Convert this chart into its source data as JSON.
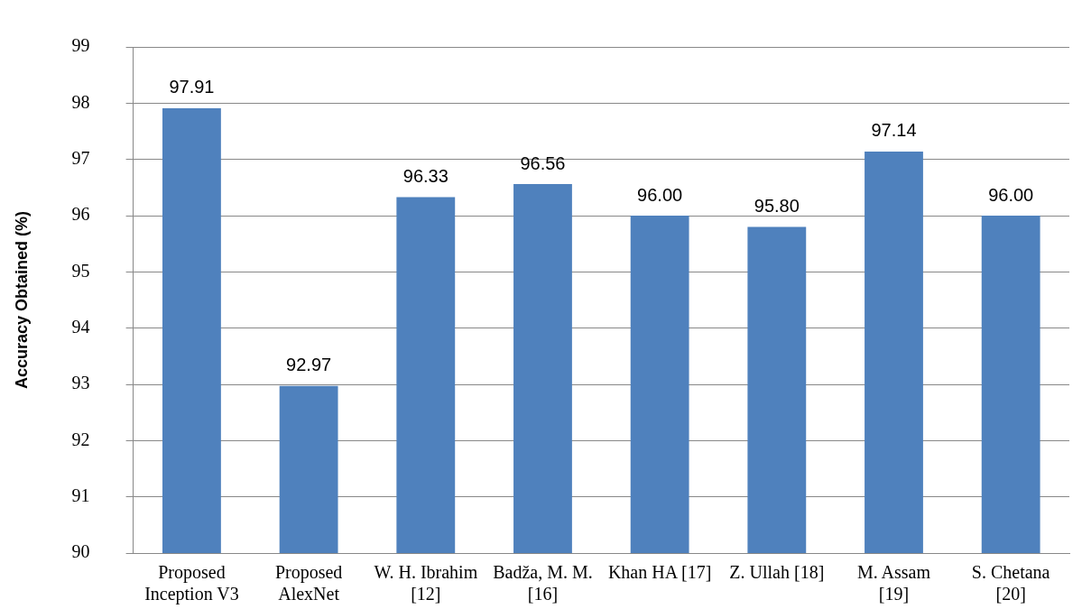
{
  "chart_data": {
    "type": "bar",
    "ylabel": "Accuracy Obtained (%)",
    "categories": [
      "Proposed Inception V3",
      "Proposed AlexNet",
      "W. H. Ibrahim [12]",
      "Badža, M. M. [16]",
      "Khan HA [17]",
      "Z. Ullah [18]",
      "M. Assam [19]",
      "S. Chetana [20]"
    ],
    "values": [
      97.91,
      92.97,
      96.33,
      96.56,
      96.0,
      95.8,
      97.14,
      96.0
    ],
    "value_labels": [
      "97.91",
      "92.97",
      "96.33",
      "96.56",
      "96.00",
      "95.80",
      "97.14",
      "96.00"
    ],
    "color": "#4f81bd",
    "ylim": [
      90,
      99
    ],
    "yticks": [
      90,
      91,
      92,
      93,
      94,
      95,
      96,
      97,
      98,
      99
    ],
    "grid": "y",
    "legend": false
  }
}
